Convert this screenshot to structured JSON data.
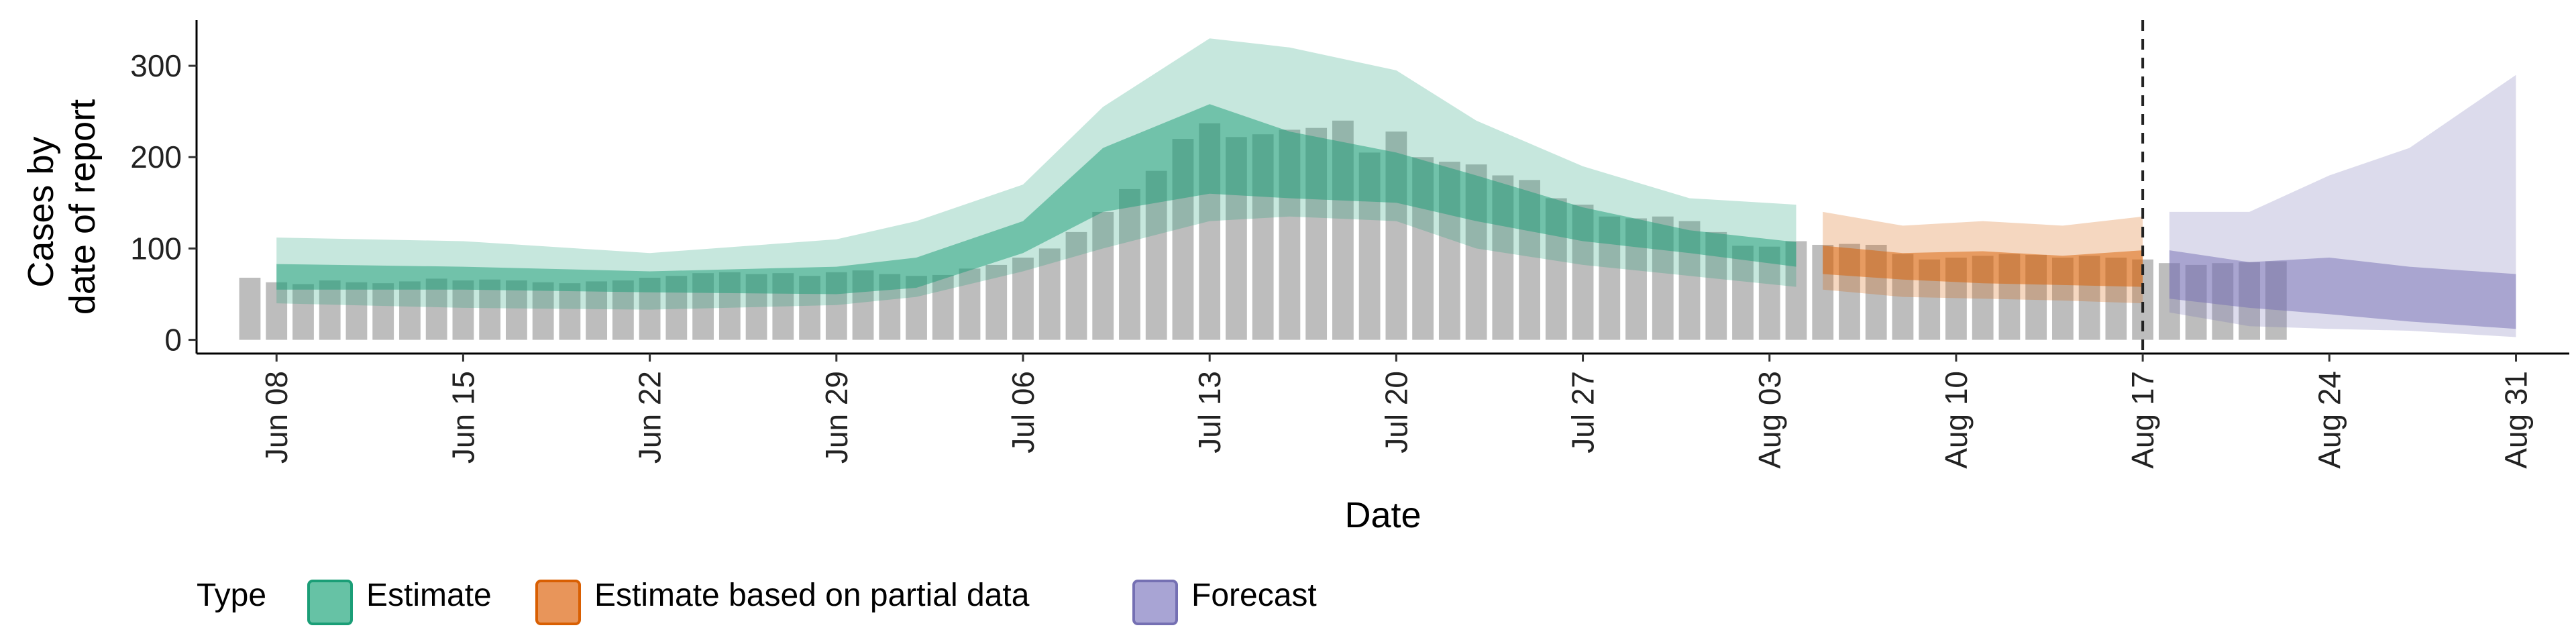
{
  "chart_data": {
    "type": "area",
    "xlabel": "Date",
    "ylabel_lines": [
      "Cases by",
      "date of report"
    ],
    "xlim": [
      "2020-06-05",
      "2020-09-02"
    ],
    "ylim": [
      -15,
      350
    ],
    "y_ticks": [
      0,
      100,
      200,
      300
    ],
    "x_ticks": [
      {
        "date": "2020-06-08",
        "label": "Jun 08"
      },
      {
        "date": "2020-06-15",
        "label": "Jun 15"
      },
      {
        "date": "2020-06-22",
        "label": "Jun 22"
      },
      {
        "date": "2020-06-29",
        "label": "Jun 29"
      },
      {
        "date": "2020-07-06",
        "label": "Jul 06"
      },
      {
        "date": "2020-07-13",
        "label": "Jul 13"
      },
      {
        "date": "2020-07-20",
        "label": "Jul 20"
      },
      {
        "date": "2020-07-27",
        "label": "Jul 27"
      },
      {
        "date": "2020-08-03",
        "label": "Aug 03"
      },
      {
        "date": "2020-08-10",
        "label": "Aug 10"
      },
      {
        "date": "2020-08-17",
        "label": "Aug 17"
      },
      {
        "date": "2020-08-24",
        "label": "Aug 24"
      },
      {
        "date": "2020-08-31",
        "label": "Aug 31"
      }
    ],
    "forecast_date": "2020-08-17",
    "grid": false,
    "legend": {
      "title": "Type",
      "position": "bottom-left",
      "entries": [
        {
          "label": "Estimate",
          "fill": "#66c2a5",
          "stroke": "#1b9e77"
        },
        {
          "label": "Estimate based on partial data",
          "fill": "#e8955a",
          "stroke": "#d95f02"
        },
        {
          "label": "Forecast",
          "fill": "#a8a4d4",
          "stroke": "#7570b3"
        }
      ]
    },
    "colors": {
      "bars": "#bdbdbd",
      "estimate": "#1b9e77",
      "partial": "#d95f02",
      "forecast": "#7570b3"
    },
    "reported_cases": {
      "start_date": "2020-06-07",
      "values": [
        68,
        63,
        61,
        65,
        63,
        62,
        64,
        67,
        65,
        66,
        65,
        63,
        62,
        64,
        65,
        68,
        70,
        73,
        74,
        72,
        73,
        70,
        74,
        76,
        72,
        70,
        71,
        78,
        82,
        90,
        100,
        118,
        140,
        165,
        185,
        220,
        237,
        222,
        225,
        230,
        232,
        240,
        205,
        228,
        200,
        195,
        192,
        180,
        175,
        155,
        148,
        135,
        133,
        135,
        130,
        118,
        103,
        102,
        108,
        104,
        105,
        104,
        94,
        88,
        90,
        92,
        94,
        93,
        90,
        92,
        90,
        88,
        84,
        82,
        84,
        85,
        86
      ]
    },
    "series": [
      {
        "name": "Estimate",
        "type": "Estimate",
        "x": [
          "2020-06-08",
          "2020-06-15",
          "2020-06-22",
          "2020-06-29",
          "2020-07-02",
          "2020-07-06",
          "2020-07-09",
          "2020-07-13",
          "2020-07-16",
          "2020-07-20",
          "2020-07-23",
          "2020-07-27",
          "2020-07-31",
          "2020-08-04"
        ],
        "lower_90": [
          40,
          35,
          33,
          38,
          47,
          75,
          100,
          130,
          135,
          130,
          100,
          82,
          70,
          58
        ],
        "upper_90": [
          112,
          108,
          95,
          110,
          130,
          170,
          255,
          330,
          320,
          295,
          240,
          190,
          155,
          148
        ],
        "lower_50": [
          55,
          55,
          52,
          50,
          57,
          95,
          140,
          160,
          155,
          150,
          130,
          108,
          95,
          80
        ],
        "upper_50": [
          83,
          80,
          75,
          80,
          90,
          130,
          210,
          258,
          228,
          205,
          180,
          145,
          120,
          107
        ]
      },
      {
        "name": "Estimate based on partial data",
        "type": "Estimate based on partial data",
        "x": [
          "2020-08-05",
          "2020-08-08",
          "2020-08-11",
          "2020-08-14",
          "2020-08-17"
        ],
        "lower_90": [
          55,
          47,
          45,
          43,
          40
        ],
        "upper_90": [
          140,
          125,
          130,
          125,
          135
        ],
        "lower_50": [
          72,
          66,
          62,
          60,
          58
        ],
        "upper_50": [
          103,
          95,
          97,
          92,
          98
        ]
      },
      {
        "name": "Forecast",
        "type": "Forecast",
        "x": [
          "2020-08-18",
          "2020-08-21",
          "2020-08-24",
          "2020-08-27",
          "2020-08-31"
        ],
        "lower_90": [
          30,
          15,
          12,
          10,
          3
        ],
        "upper_90": [
          140,
          140,
          180,
          210,
          290
        ],
        "lower_50": [
          45,
          35,
          28,
          20,
          12
        ],
        "upper_50": [
          98,
          85,
          90,
          80,
          72
        ]
      }
    ]
  }
}
